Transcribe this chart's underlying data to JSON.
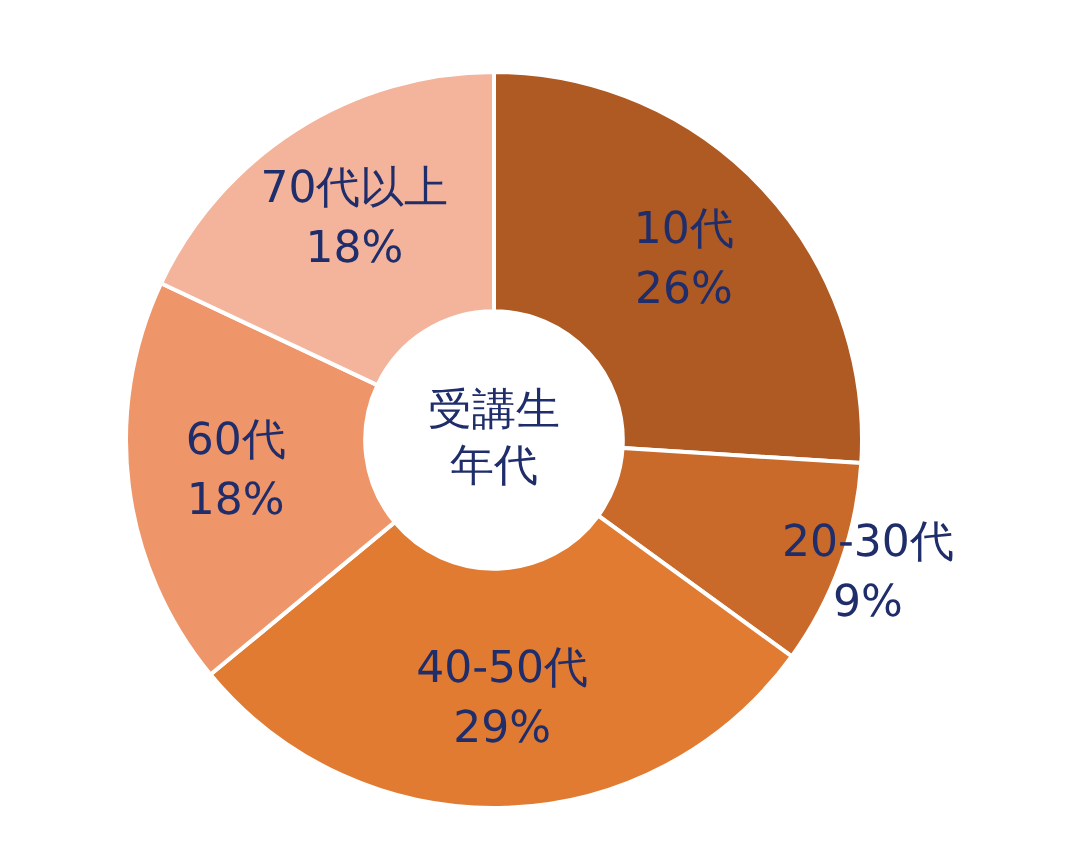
{
  "chart_data": {
    "type": "donut",
    "title": "受講生年代",
    "categories": [
      "10代",
      "20-30代",
      "40-50代",
      "60代",
      "70代以上"
    ],
    "values": [
      26,
      9,
      29,
      18,
      18
    ],
    "value_labels": [
      "26%",
      "9%",
      "29%",
      "18%",
      "18%"
    ],
    "colors": [
      "#ae5a22",
      "#c96a2a",
      "#e07b31",
      "#ef956a",
      "#f3b49b"
    ],
    "legend": false
  }
}
